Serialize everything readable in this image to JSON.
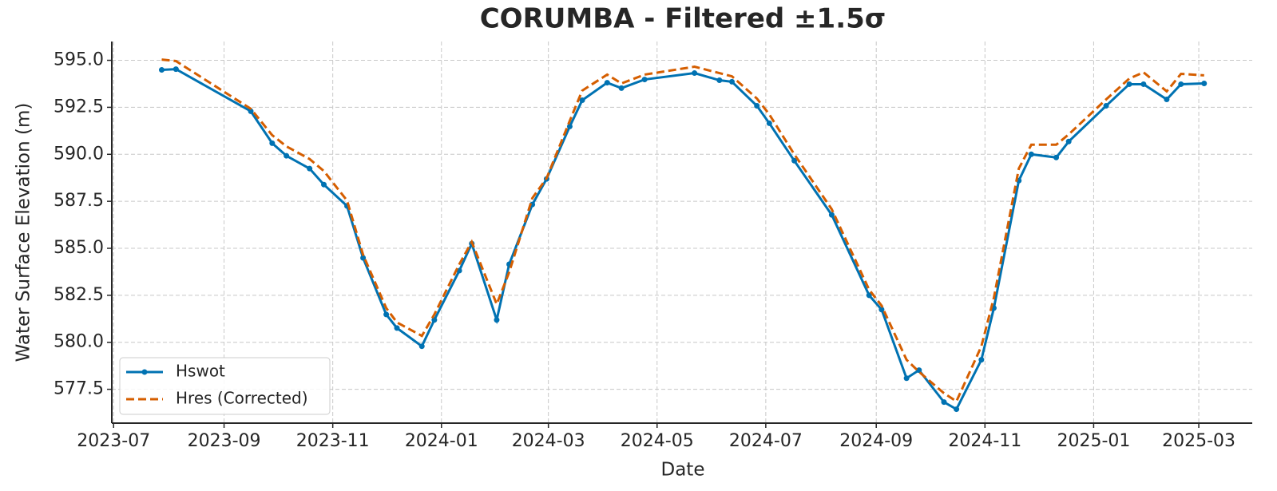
{
  "chart_data": {
    "type": "line",
    "title": "CORUMBA - Filtered ±1.5σ",
    "x_label": "Date",
    "y_label": "Water Surface Elevation (m)",
    "x": [
      "2023-07-28",
      "2023-08-05",
      "2023-09-16",
      "2023-09-28",
      "2023-10-06",
      "2023-10-19",
      "2023-10-27",
      "2023-11-09",
      "2023-11-18",
      "2023-12-01",
      "2023-12-07",
      "2023-12-21",
      "2023-12-28",
      "2024-01-11",
      "2024-01-18",
      "2024-02-01",
      "2024-02-08",
      "2024-02-21",
      "2024-02-29",
      "2024-03-13",
      "2024-03-20",
      "2024-04-03",
      "2024-04-11",
      "2024-04-24",
      "2024-05-22",
      "2024-06-05",
      "2024-06-12",
      "2024-06-26",
      "2024-07-03",
      "2024-07-17",
      "2024-08-07",
      "2024-08-28",
      "2024-09-04",
      "2024-09-18",
      "2024-09-25",
      "2024-10-09",
      "2024-10-16",
      "2024-10-30",
      "2024-11-06",
      "2024-11-20",
      "2024-11-27",
      "2024-12-11",
      "2024-12-18",
      "2025-01-08",
      "2025-01-21",
      "2025-01-29",
      "2025-02-11",
      "2025-02-19",
      "2025-03-04"
    ],
    "series": [
      {
        "name": "Hswot",
        "color": "#0072b2",
        "style": "solid",
        "markers": true,
        "values": [
          594.49,
          594.53,
          592.29,
          590.59,
          589.92,
          589.24,
          588.39,
          587.25,
          584.49,
          581.48,
          580.76,
          579.79,
          581.19,
          583.81,
          585.25,
          581.19,
          584.15,
          587.33,
          588.69,
          591.48,
          592.88,
          593.81,
          593.52,
          593.98,
          594.32,
          593.94,
          593.86,
          592.58,
          591.65,
          589.66,
          586.78,
          582.5,
          581.74,
          578.09,
          578.52,
          576.82,
          576.44,
          579.07,
          581.82,
          588.6,
          590.0,
          589.83,
          590.68,
          592.58,
          593.73,
          593.73,
          592.92,
          593.73,
          593.77
        ]
      },
      {
        "name": "Hres (Corrected)",
        "color": "#d55e00",
        "style": "dashed",
        "markers": false,
        "values": [
          595.04,
          594.96,
          592.42,
          591.02,
          590.42,
          589.75,
          589.11,
          587.54,
          584.66,
          581.82,
          581.06,
          580.34,
          581.48,
          584.15,
          585.34,
          582.03,
          583.73,
          587.67,
          588.73,
          591.78,
          593.39,
          594.24,
          593.77,
          594.24,
          594.66,
          594.32,
          594.15,
          592.97,
          592.12,
          590.0,
          587.08,
          582.8,
          581.95,
          579.07,
          578.43,
          577.29,
          576.86,
          579.79,
          582.37,
          589.24,
          590.51,
          590.51,
          591.06,
          592.92,
          594.03,
          594.36,
          593.35,
          594.28,
          594.2
        ]
      }
    ],
    "xlim": [
      "2023-06-30",
      "2025-03-31"
    ],
    "xticks": [
      {
        "value": "2023-07-01",
        "label": "2023-07"
      },
      {
        "value": "2023-09-01",
        "label": "2023-09"
      },
      {
        "value": "2023-11-01",
        "label": "2023-11"
      },
      {
        "value": "2024-01-01",
        "label": "2024-01"
      },
      {
        "value": "2024-03-01",
        "label": "2024-03"
      },
      {
        "value": "2024-05-01",
        "label": "2024-05"
      },
      {
        "value": "2024-07-01",
        "label": "2024-07"
      },
      {
        "value": "2024-09-01",
        "label": "2024-09"
      },
      {
        "value": "2024-11-01",
        "label": "2024-11"
      },
      {
        "value": "2025-01-01",
        "label": "2025-01"
      },
      {
        "value": "2025-03-01",
        "label": "2025-03"
      }
    ],
    "ylim": [
      575.7,
      596
    ],
    "yticks": [
      {
        "value": 577.5,
        "label": "577.5"
      },
      {
        "value": 580,
        "label": "580.0"
      },
      {
        "value": 582.5,
        "label": "582.5"
      },
      {
        "value": 585,
        "label": "585.0"
      },
      {
        "value": 587.5,
        "label": "587.5"
      },
      {
        "value": 590,
        "label": "590.0"
      },
      {
        "value": 592.5,
        "label": "592.5"
      },
      {
        "value": 595,
        "label": "595.0"
      }
    ],
    "grid": true,
    "legend": "lower left"
  }
}
